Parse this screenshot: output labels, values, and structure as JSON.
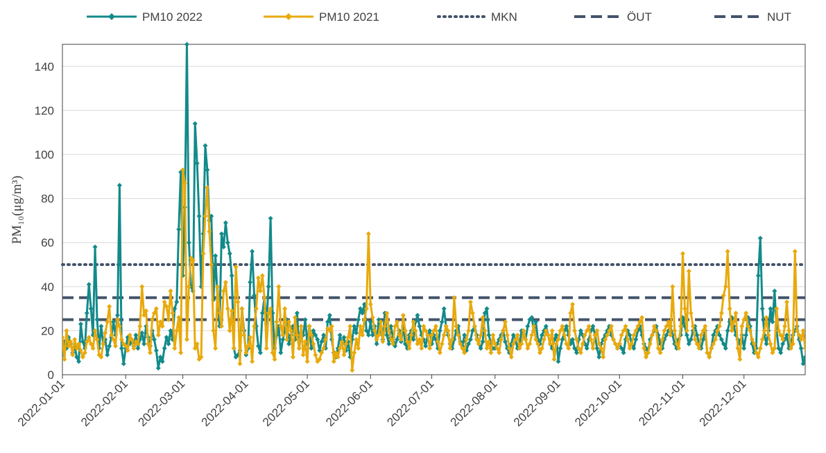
{
  "chart_data": {
    "type": "line",
    "y_label": "PM₁₀(μg/m³)",
    "xlim": [
      "2022-01-01",
      "2022-12-31"
    ],
    "xticks": [
      "2022-01-01",
      "2022-02-01",
      "2022-03-01",
      "2022-04-01",
      "2022-05-01",
      "2022-06-01",
      "2022-07-01",
      "2022-08-01",
      "2022-09-01",
      "2022-10-01",
      "2022-11-01",
      "2022-12-01"
    ],
    "ylim": [
      0,
      150
    ],
    "yticks": [
      0,
      20,
      40,
      60,
      80,
      100,
      120,
      140
    ],
    "grid": true,
    "x": [
      "2022-01-01",
      "2022-01-02",
      "2022-01-03",
      "2022-01-04",
      "2022-01-05",
      "2022-01-06",
      "2022-01-07",
      "2022-01-08",
      "2022-01-09",
      "2022-01-10",
      "2022-01-11",
      "2022-01-12",
      "2022-01-13",
      "2022-01-14",
      "2022-01-15",
      "2022-01-16",
      "2022-01-17",
      "2022-01-18",
      "2022-01-19",
      "2022-01-20",
      "2022-01-21",
      "2022-01-22",
      "2022-01-23",
      "2022-01-24",
      "2022-01-25",
      "2022-01-26",
      "2022-01-27",
      "2022-01-28",
      "2022-01-29",
      "2022-01-30",
      "2022-01-31",
      "2022-02-01",
      "2022-02-02",
      "2022-02-03",
      "2022-02-04",
      "2022-02-05",
      "2022-02-06",
      "2022-02-07",
      "2022-02-08",
      "2022-02-09",
      "2022-02-10",
      "2022-02-11",
      "2022-02-12",
      "2022-02-13",
      "2022-02-14",
      "2022-02-15",
      "2022-02-16",
      "2022-02-17",
      "2022-02-18",
      "2022-02-19",
      "2022-02-20",
      "2022-02-21",
      "2022-02-22",
      "2022-02-23",
      "2022-02-24",
      "2022-02-25",
      "2022-02-26",
      "2022-02-27",
      "2022-02-28",
      "2022-03-01",
      "2022-03-02",
      "2022-03-03",
      "2022-03-04",
      "2022-03-05",
      "2022-03-06",
      "2022-03-07",
      "2022-03-08",
      "2022-03-09",
      "2022-03-10",
      "2022-03-11",
      "2022-03-12",
      "2022-03-13",
      "2022-03-14",
      "2022-03-15",
      "2022-03-16",
      "2022-03-17",
      "2022-03-18",
      "2022-03-19",
      "2022-03-20",
      "2022-03-21",
      "2022-03-22",
      "2022-03-23",
      "2022-03-24",
      "2022-03-25",
      "2022-03-26",
      "2022-03-27",
      "2022-03-28",
      "2022-03-29",
      "2022-03-30",
      "2022-03-31",
      "2022-04-01",
      "2022-04-02",
      "2022-04-03",
      "2022-04-04",
      "2022-04-05",
      "2022-04-06",
      "2022-04-07",
      "2022-04-08",
      "2022-04-09",
      "2022-04-10",
      "2022-04-11",
      "2022-04-12",
      "2022-04-13",
      "2022-04-14",
      "2022-04-15",
      "2022-04-16",
      "2022-04-17",
      "2022-04-18",
      "2022-04-19",
      "2022-04-20",
      "2022-04-21",
      "2022-04-22",
      "2022-04-23",
      "2022-04-24",
      "2022-04-25",
      "2022-04-26",
      "2022-04-27",
      "2022-04-28",
      "2022-04-29",
      "2022-04-30",
      "2022-05-01",
      "2022-05-02",
      "2022-05-03",
      "2022-05-04",
      "2022-05-05",
      "2022-05-06",
      "2022-05-07",
      "2022-05-08",
      "2022-05-09",
      "2022-05-10",
      "2022-05-11",
      "2022-05-12",
      "2022-05-13",
      "2022-05-14",
      "2022-05-15",
      "2022-05-16",
      "2022-05-17",
      "2022-05-18",
      "2022-05-19",
      "2022-05-20",
      "2022-05-21",
      "2022-05-22",
      "2022-05-23",
      "2022-05-24",
      "2022-05-25",
      "2022-05-26",
      "2022-05-27",
      "2022-05-28",
      "2022-05-29",
      "2022-05-30",
      "2022-05-31",
      "2022-06-01",
      "2022-06-02",
      "2022-06-03",
      "2022-06-04",
      "2022-06-05",
      "2022-06-06",
      "2022-06-07",
      "2022-06-08",
      "2022-06-09",
      "2022-06-10",
      "2022-06-11",
      "2022-06-12",
      "2022-06-13",
      "2022-06-14",
      "2022-06-15",
      "2022-06-16",
      "2022-06-17",
      "2022-06-18",
      "2022-06-19",
      "2022-06-20",
      "2022-06-21",
      "2022-06-22",
      "2022-06-23",
      "2022-06-24",
      "2022-06-25",
      "2022-06-26",
      "2022-06-27",
      "2022-06-28",
      "2022-06-29",
      "2022-06-30",
      "2022-07-01",
      "2022-07-02",
      "2022-07-03",
      "2022-07-04",
      "2022-07-05",
      "2022-07-06",
      "2022-07-07",
      "2022-07-08",
      "2022-07-09",
      "2022-07-10",
      "2022-07-11",
      "2022-07-12",
      "2022-07-13",
      "2022-07-14",
      "2022-07-15",
      "2022-07-16",
      "2022-07-17",
      "2022-07-18",
      "2022-07-19",
      "2022-07-20",
      "2022-07-21",
      "2022-07-22",
      "2022-07-23",
      "2022-07-24",
      "2022-07-25",
      "2022-07-26",
      "2022-07-27",
      "2022-07-28",
      "2022-07-29",
      "2022-07-30",
      "2022-07-31",
      "2022-08-01",
      "2022-08-02",
      "2022-08-03",
      "2022-08-04",
      "2022-08-05",
      "2022-08-06",
      "2022-08-07",
      "2022-08-08",
      "2022-08-09",
      "2022-08-10",
      "2022-08-11",
      "2022-08-12",
      "2022-08-13",
      "2022-08-14",
      "2022-08-15",
      "2022-08-16",
      "2022-08-17",
      "2022-08-18",
      "2022-08-19",
      "2022-08-20",
      "2022-08-21",
      "2022-08-22",
      "2022-08-23",
      "2022-08-24",
      "2022-08-25",
      "2022-08-26",
      "2022-08-27",
      "2022-08-28",
      "2022-08-29",
      "2022-08-30",
      "2022-08-31",
      "2022-09-01",
      "2022-09-02",
      "2022-09-03",
      "2022-09-04",
      "2022-09-05",
      "2022-09-06",
      "2022-09-07",
      "2022-09-08",
      "2022-09-09",
      "2022-09-10",
      "2022-09-11",
      "2022-09-12",
      "2022-09-13",
      "2022-09-14",
      "2022-09-15",
      "2022-09-16",
      "2022-09-17",
      "2022-09-18",
      "2022-09-19",
      "2022-09-20",
      "2022-09-21",
      "2022-09-22",
      "2022-09-23",
      "2022-09-24",
      "2022-09-25",
      "2022-09-26",
      "2022-09-27",
      "2022-09-28",
      "2022-09-29",
      "2022-09-30",
      "2022-10-01",
      "2022-10-02",
      "2022-10-03",
      "2022-10-04",
      "2022-10-05",
      "2022-10-06",
      "2022-10-07",
      "2022-10-08",
      "2022-10-09",
      "2022-10-10",
      "2022-10-11",
      "2022-10-12",
      "2022-10-13",
      "2022-10-14",
      "2022-10-15",
      "2022-10-16",
      "2022-10-17",
      "2022-10-18",
      "2022-10-19",
      "2022-10-20",
      "2022-10-21",
      "2022-10-22",
      "2022-10-23",
      "2022-10-24",
      "2022-10-25",
      "2022-10-26",
      "2022-10-27",
      "2022-10-28",
      "2022-10-29",
      "2022-10-30",
      "2022-10-31",
      "2022-11-01",
      "2022-11-02",
      "2022-11-03",
      "2022-11-04",
      "2022-11-05",
      "2022-11-06",
      "2022-11-07",
      "2022-11-08",
      "2022-11-09",
      "2022-11-10",
      "2022-11-11",
      "2022-11-12",
      "2022-11-13",
      "2022-11-14",
      "2022-11-15",
      "2022-11-16",
      "2022-11-17",
      "2022-11-18",
      "2022-11-19",
      "2022-11-20",
      "2022-11-21",
      "2022-11-22",
      "2022-11-23",
      "2022-11-24",
      "2022-11-25",
      "2022-11-26",
      "2022-11-27",
      "2022-11-28",
      "2022-11-29",
      "2022-11-30",
      "2022-12-01",
      "2022-12-02",
      "2022-12-03",
      "2022-12-04",
      "2022-12-05",
      "2022-12-06",
      "2022-12-07",
      "2022-12-08",
      "2022-12-09",
      "2022-12-10",
      "2022-12-11",
      "2022-12-12",
      "2022-12-13",
      "2022-12-14",
      "2022-12-15",
      "2022-12-16",
      "2022-12-17",
      "2022-12-18",
      "2022-12-19",
      "2022-12-20",
      "2022-12-21",
      "2022-12-22",
      "2022-12-23",
      "2022-12-24",
      "2022-12-25",
      "2022-12-26",
      "2022-12-27",
      "2022-12-28",
      "2022-12-29",
      "2022-12-30",
      "2022-12-31"
    ],
    "series": [
      {
        "name": "PM10 2022",
        "color": "#138a8a",
        "values": [
          9,
          15,
          12,
          17,
          14,
          10,
          13,
          8,
          6,
          23,
          15,
          12,
          28,
          41,
          30,
          18,
          58,
          25,
          12,
          22,
          14,
          16,
          9,
          13,
          17,
          24,
          18,
          27,
          86,
          12,
          5,
          12,
          17,
          14,
          15,
          13,
          18,
          12,
          16,
          19,
          14,
          22,
          17,
          13,
          20,
          16,
          11,
          3,
          8,
          6,
          12,
          17,
          14,
          20,
          16,
          30,
          33,
          66,
          92,
          45,
          76,
          150,
          60,
          40,
          38,
          114,
          96,
          72,
          40,
          64,
          104,
          93,
          70,
          72,
          34,
          54,
          35,
          22,
          64,
          58,
          69,
          60,
          55,
          45,
          12,
          8,
          9,
          11,
          30,
          20,
          9,
          12,
          42,
          56,
          36,
          22,
          13,
          10,
          28,
          35,
          23,
          40,
          71,
          28,
          12,
          18,
          22,
          10,
          16,
          20,
          25,
          14,
          18,
          22,
          16,
          28,
          12,
          19,
          18,
          25,
          14,
          22,
          12,
          20,
          18,
          16,
          11,
          15,
          18,
          12,
          24,
          27,
          16,
          10,
          8,
          12,
          18,
          14,
          17,
          11,
          15,
          8,
          16,
          22,
          19,
          25,
          30,
          28,
          32,
          20,
          18,
          24,
          18,
          22,
          14,
          25,
          20,
          16,
          28,
          18,
          14,
          22,
          17,
          13,
          16,
          20,
          15,
          22,
          14,
          12,
          18,
          20,
          16,
          24,
          27,
          22,
          18,
          16,
          13,
          18,
          20,
          14,
          18,
          16,
          12,
          20,
          24,
          30,
          22,
          18,
          14,
          12,
          16,
          20,
          22,
          15,
          13,
          18,
          11,
          14,
          16,
          20,
          22,
          18,
          14,
          12,
          15,
          28,
          30,
          18,
          14,
          12,
          12,
          14,
          16,
          18,
          20,
          15,
          12,
          10,
          14,
          18,
          16,
          12,
          14,
          20,
          18,
          16,
          22,
          25,
          26,
          20,
          24,
          16,
          14,
          18,
          20,
          22,
          18,
          14,
          12,
          16,
          18,
          6,
          12,
          16,
          20,
          22,
          18,
          14,
          16,
          12,
          10,
          16,
          20,
          18,
          14,
          12,
          16,
          20,
          22,
          18,
          12,
          8,
          14,
          16,
          18,
          20,
          22,
          18,
          16,
          14,
          12,
          14,
          12,
          10,
          16,
          20,
          18,
          14,
          12,
          16,
          20,
          22,
          18,
          14,
          12,
          10,
          16,
          18,
          20,
          22,
          18,
          14,
          12,
          16,
          18,
          20,
          22,
          18,
          14,
          12,
          16,
          18,
          26,
          22,
          18,
          14,
          16,
          20,
          22,
          18,
          14,
          12,
          16,
          20,
          10,
          8,
          12,
          18,
          20,
          22,
          18,
          16,
          14,
          12,
          20,
          24,
          26,
          22,
          18,
          16,
          14,
          18,
          12,
          18,
          26,
          22,
          14,
          10,
          12,
          45,
          62,
          30,
          18,
          14,
          20,
          30,
          24,
          38,
          20,
          12,
          10,
          14,
          16,
          18,
          12,
          14,
          18,
          20,
          22,
          16,
          12,
          5,
          8
        ]
      },
      {
        "name": "PM10 2021",
        "color": "#e8a90c",
        "values": [
          17,
          7,
          20,
          13,
          15,
          9,
          16,
          12,
          14,
          11,
          8,
          10,
          15,
          17,
          14,
          12,
          20,
          16,
          9,
          8,
          14,
          19,
          24,
          31,
          18,
          16,
          13,
          25,
          22,
          16,
          14,
          13,
          11,
          18,
          16,
          12,
          15,
          14,
          22,
          40,
          27,
          29,
          14,
          10,
          25,
          28,
          30,
          18,
          24,
          22,
          33,
          31,
          25,
          38,
          28,
          12,
          20,
          26,
          10,
          93,
          87,
          16,
          40,
          53,
          52,
          12,
          14,
          7,
          8,
          55,
          72,
          85,
          65,
          50,
          20,
          12,
          40,
          28,
          22,
          38,
          42,
          30,
          20,
          29,
          12,
          49,
          33,
          5,
          30,
          18,
          10,
          13,
          17,
          6,
          22,
          30,
          44,
          38,
          45,
          35,
          12,
          28,
          30,
          10,
          7,
          24,
          40,
          22,
          18,
          30,
          16,
          24,
          20,
          8,
          26,
          18,
          12,
          22,
          9,
          15,
          6,
          22,
          18,
          14,
          9,
          6,
          7,
          10,
          12,
          16,
          21,
          20,
          22,
          6,
          10,
          8,
          12,
          15,
          9,
          14,
          17,
          22,
          2,
          10,
          16,
          12,
          22,
          18,
          25,
          30,
          64,
          32,
          26,
          20,
          16,
          18,
          24,
          15,
          22,
          28,
          20,
          16,
          14,
          22,
          24,
          18,
          16,
          27,
          20,
          15,
          12,
          18,
          24,
          20,
          14,
          16,
          12,
          22,
          20,
          18,
          12,
          18,
          20,
          22,
          15,
          10,
          14,
          18,
          22,
          20,
          12,
          16,
          35,
          22,
          18,
          14,
          12,
          10,
          16,
          20,
          33,
          28,
          22,
          16,
          14,
          18,
          26,
          20,
          12,
          15,
          10,
          18,
          14,
          12,
          10,
          16,
          20,
          24,
          18,
          12,
          8,
          14,
          16,
          18,
          12,
          14,
          20,
          16,
          12,
          14,
          18,
          22,
          16,
          14,
          10,
          12,
          16,
          20,
          18,
          14,
          20,
          7,
          14,
          16,
          20,
          22,
          18,
          14,
          12,
          28,
          32,
          20,
          16,
          12,
          10,
          14,
          18,
          20,
          22,
          16,
          12,
          18,
          20,
          14,
          12,
          8,
          16,
          18,
          20,
          22,
          16,
          14,
          12,
          14,
          18,
          20,
          22,
          16,
          12,
          14,
          18,
          20,
          22,
          24,
          26,
          12,
          8,
          10,
          14,
          18,
          22,
          20,
          12,
          10,
          16,
          20,
          22,
          24,
          18,
          40,
          20,
          14,
          12,
          22,
          55,
          30,
          20,
          47,
          28,
          22,
          16,
          14,
          12,
          18,
          20,
          22,
          10,
          8,
          12,
          14,
          16,
          20,
          22,
          28,
          36,
          40,
          56,
          30,
          20,
          24,
          28,
          12,
          7,
          22,
          25,
          28,
          22,
          20,
          16,
          14,
          10,
          8,
          12,
          16,
          20,
          26,
          18,
          14,
          10,
          12,
          30,
          20,
          18,
          16,
          22,
          33,
          20,
          12,
          14,
          56,
          20,
          18,
          16,
          20,
          12
        ]
      }
    ],
    "reference_lines": [
      {
        "name": "MKN",
        "value": 50,
        "style": "dotted",
        "color": "#44546a"
      },
      {
        "name": "ÖUT",
        "value": 35,
        "style": "dashed",
        "color": "#44546a"
      },
      {
        "name": "NUT",
        "value": 25,
        "style": "dashed",
        "color": "#44546a"
      }
    ]
  }
}
